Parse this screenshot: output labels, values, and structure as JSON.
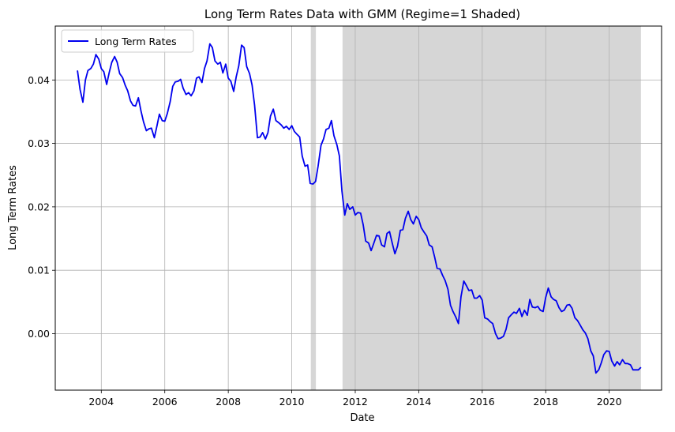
{
  "chart_data": {
    "type": "line",
    "title": "Long Term Rates Data with GMM (Regime=1 Shaded)",
    "xlabel": "Date",
    "ylabel": "Long Term Rates",
    "xlim": [
      2002.55,
      2021.65
    ],
    "ylim": [
      -0.0089,
      0.0485
    ],
    "x_ticks": [
      2004,
      2006,
      2008,
      2010,
      2012,
      2014,
      2016,
      2018,
      2020
    ],
    "x_tick_labels": [
      "2004",
      "2006",
      "2008",
      "2010",
      "2012",
      "2014",
      "2016",
      "2018",
      "2020"
    ],
    "y_ticks": [
      0.0,
      0.01,
      0.02,
      0.03,
      0.04
    ],
    "y_tick_labels": [
      "0.00",
      "0.01",
      "0.02",
      "0.03",
      "0.04"
    ],
    "grid": true,
    "legend_position": "top-left",
    "shaded_regions": [
      {
        "start": 2010.6,
        "end": 2010.76
      },
      {
        "start": 2011.6,
        "end": 2021.0
      }
    ],
    "shade_color": "#d6d6d6",
    "series": [
      {
        "name": "Long Term Rates",
        "color": "#0000ee",
        "x": [
          2003.25,
          2003.33,
          2003.42,
          2003.5,
          2003.58,
          2003.67,
          2003.75,
          2003.83,
          2003.92,
          2004.0,
          2004.08,
          2004.17,
          2004.25,
          2004.33,
          2004.42,
          2004.5,
          2004.58,
          2004.67,
          2004.75,
          2004.83,
          2004.92,
          2005.0,
          2005.08,
          2005.17,
          2005.25,
          2005.33,
          2005.42,
          2005.5,
          2005.58,
          2005.67,
          2005.75,
          2005.83,
          2005.92,
          2006.0,
          2006.08,
          2006.17,
          2006.25,
          2006.33,
          2006.42,
          2006.5,
          2006.58,
          2006.67,
          2006.75,
          2006.83,
          2006.92,
          2007.0,
          2007.08,
          2007.17,
          2007.25,
          2007.33,
          2007.42,
          2007.5,
          2007.58,
          2007.67,
          2007.75,
          2007.83,
          2007.92,
          2008.0,
          2008.08,
          2008.17,
          2008.25,
          2008.33,
          2008.42,
          2008.5,
          2008.58,
          2008.67,
          2008.75,
          2008.83,
          2008.92,
          2009.0,
          2009.08,
          2009.17,
          2009.25,
          2009.33,
          2009.42,
          2009.5,
          2009.58,
          2009.67,
          2009.75,
          2009.83,
          2009.92,
          2010.0,
          2010.08,
          2010.17,
          2010.25,
          2010.33,
          2010.42,
          2010.5,
          2010.58,
          2010.67,
          2010.75,
          2010.83,
          2010.92,
          2011.0,
          2011.08,
          2011.17,
          2011.25,
          2011.33,
          2011.42,
          2011.5,
          2011.58,
          2011.67,
          2011.75,
          2011.83,
          2011.92,
          2012.0,
          2012.08,
          2012.17,
          2012.25,
          2012.33,
          2012.42,
          2012.5,
          2012.58,
          2012.67,
          2012.75,
          2012.83,
          2012.92,
          2013.0,
          2013.08,
          2013.17,
          2013.25,
          2013.33,
          2013.42,
          2013.5,
          2013.58,
          2013.67,
          2013.75,
          2013.83,
          2013.92,
          2014.0,
          2014.08,
          2014.17,
          2014.25,
          2014.33,
          2014.42,
          2014.5,
          2014.58,
          2014.67,
          2014.75,
          2014.83,
          2014.92,
          2015.0,
          2015.08,
          2015.17,
          2015.25,
          2015.33,
          2015.42,
          2015.5,
          2015.58,
          2015.67,
          2015.75,
          2015.83,
          2015.92,
          2016.0,
          2016.08,
          2016.17,
          2016.25,
          2016.33,
          2016.42,
          2016.5,
          2016.58,
          2016.67,
          2016.75,
          2016.83,
          2016.92,
          2017.0,
          2017.08,
          2017.17,
          2017.25,
          2017.33,
          2017.42,
          2017.5,
          2017.58,
          2017.67,
          2017.75,
          2017.83,
          2017.92,
          2018.0,
          2018.08,
          2018.17,
          2018.25,
          2018.33,
          2018.42,
          2018.5,
          2018.58,
          2018.67,
          2018.75,
          2018.83,
          2018.92,
          2019.0,
          2019.08,
          2019.17,
          2019.25,
          2019.33,
          2019.42,
          2019.5,
          2019.58,
          2019.67,
          2019.75,
          2019.83,
          2019.92,
          2020.0,
          2020.08,
          2020.17,
          2020.25,
          2020.33,
          2020.42,
          2020.5,
          2020.58,
          2020.67,
          2020.75,
          2020.83,
          2020.92,
          2021.0
        ],
        "y": [
          0.0415,
          0.0385,
          0.0365,
          0.04,
          0.0415,
          0.0418,
          0.0425,
          0.044,
          0.0433,
          0.0418,
          0.0413,
          0.0393,
          0.0412,
          0.0428,
          0.0437,
          0.0428,
          0.041,
          0.0404,
          0.0392,
          0.0383,
          0.0367,
          0.036,
          0.0359,
          0.0372,
          0.0351,
          0.0334,
          0.032,
          0.0323,
          0.0324,
          0.0309,
          0.0327,
          0.0346,
          0.0336,
          0.0335,
          0.0347,
          0.0366,
          0.039,
          0.0397,
          0.0398,
          0.0401,
          0.0387,
          0.0377,
          0.038,
          0.0375,
          0.0383,
          0.0403,
          0.0405,
          0.0396,
          0.0418,
          0.043,
          0.0457,
          0.0451,
          0.043,
          0.0425,
          0.0428,
          0.0411,
          0.0425,
          0.0403,
          0.0398,
          0.0382,
          0.0405,
          0.0422,
          0.0455,
          0.0451,
          0.0421,
          0.041,
          0.0392,
          0.036,
          0.0309,
          0.031,
          0.0317,
          0.0307,
          0.0317,
          0.0343,
          0.0354,
          0.0336,
          0.0333,
          0.0329,
          0.0324,
          0.0327,
          0.0322,
          0.0328,
          0.0319,
          0.0314,
          0.031,
          0.028,
          0.0264,
          0.0266,
          0.0237,
          0.0236,
          0.024,
          0.0264,
          0.0297,
          0.0307,
          0.0322,
          0.0324,
          0.0336,
          0.0312,
          0.0298,
          0.028,
          0.0225,
          0.0187,
          0.0205,
          0.0196,
          0.02,
          0.0187,
          0.0191,
          0.019,
          0.0172,
          0.0146,
          0.0143,
          0.0131,
          0.0142,
          0.0155,
          0.0154,
          0.014,
          0.0137,
          0.0158,
          0.0161,
          0.0142,
          0.0126,
          0.0138,
          0.0163,
          0.0164,
          0.0182,
          0.0193,
          0.018,
          0.0173,
          0.0185,
          0.018,
          0.0167,
          0.016,
          0.0154,
          0.014,
          0.0137,
          0.0121,
          0.0103,
          0.0102,
          0.0092,
          0.0084,
          0.007,
          0.0045,
          0.0035,
          0.0026,
          0.0016,
          0.0058,
          0.0083,
          0.0076,
          0.0068,
          0.0069,
          0.0056,
          0.0056,
          0.006,
          0.0053,
          0.0025,
          0.0023,
          0.0019,
          0.0016,
          0.0,
          -0.0008,
          -0.0007,
          -0.0004,
          0.0007,
          0.0025,
          0.003,
          0.0034,
          0.0032,
          0.004,
          0.0027,
          0.0037,
          0.0029,
          0.0054,
          0.0042,
          0.0041,
          0.0043,
          0.0037,
          0.0035,
          0.0057,
          0.0072,
          0.0058,
          0.0054,
          0.0052,
          0.0041,
          0.0035,
          0.0037,
          0.0045,
          0.0046,
          0.004,
          0.0025,
          0.0021,
          0.0014,
          0.0006,
          0.0001,
          -0.0008,
          -0.0027,
          -0.0035,
          -0.0062,
          -0.0057,
          -0.0046,
          -0.0033,
          -0.0027,
          -0.0028,
          -0.0043,
          -0.0051,
          -0.0044,
          -0.0049,
          -0.0041,
          -0.0047,
          -0.0047,
          -0.0049,
          -0.0057,
          -0.0057,
          -0.0057,
          -0.0053
        ]
      }
    ]
  }
}
